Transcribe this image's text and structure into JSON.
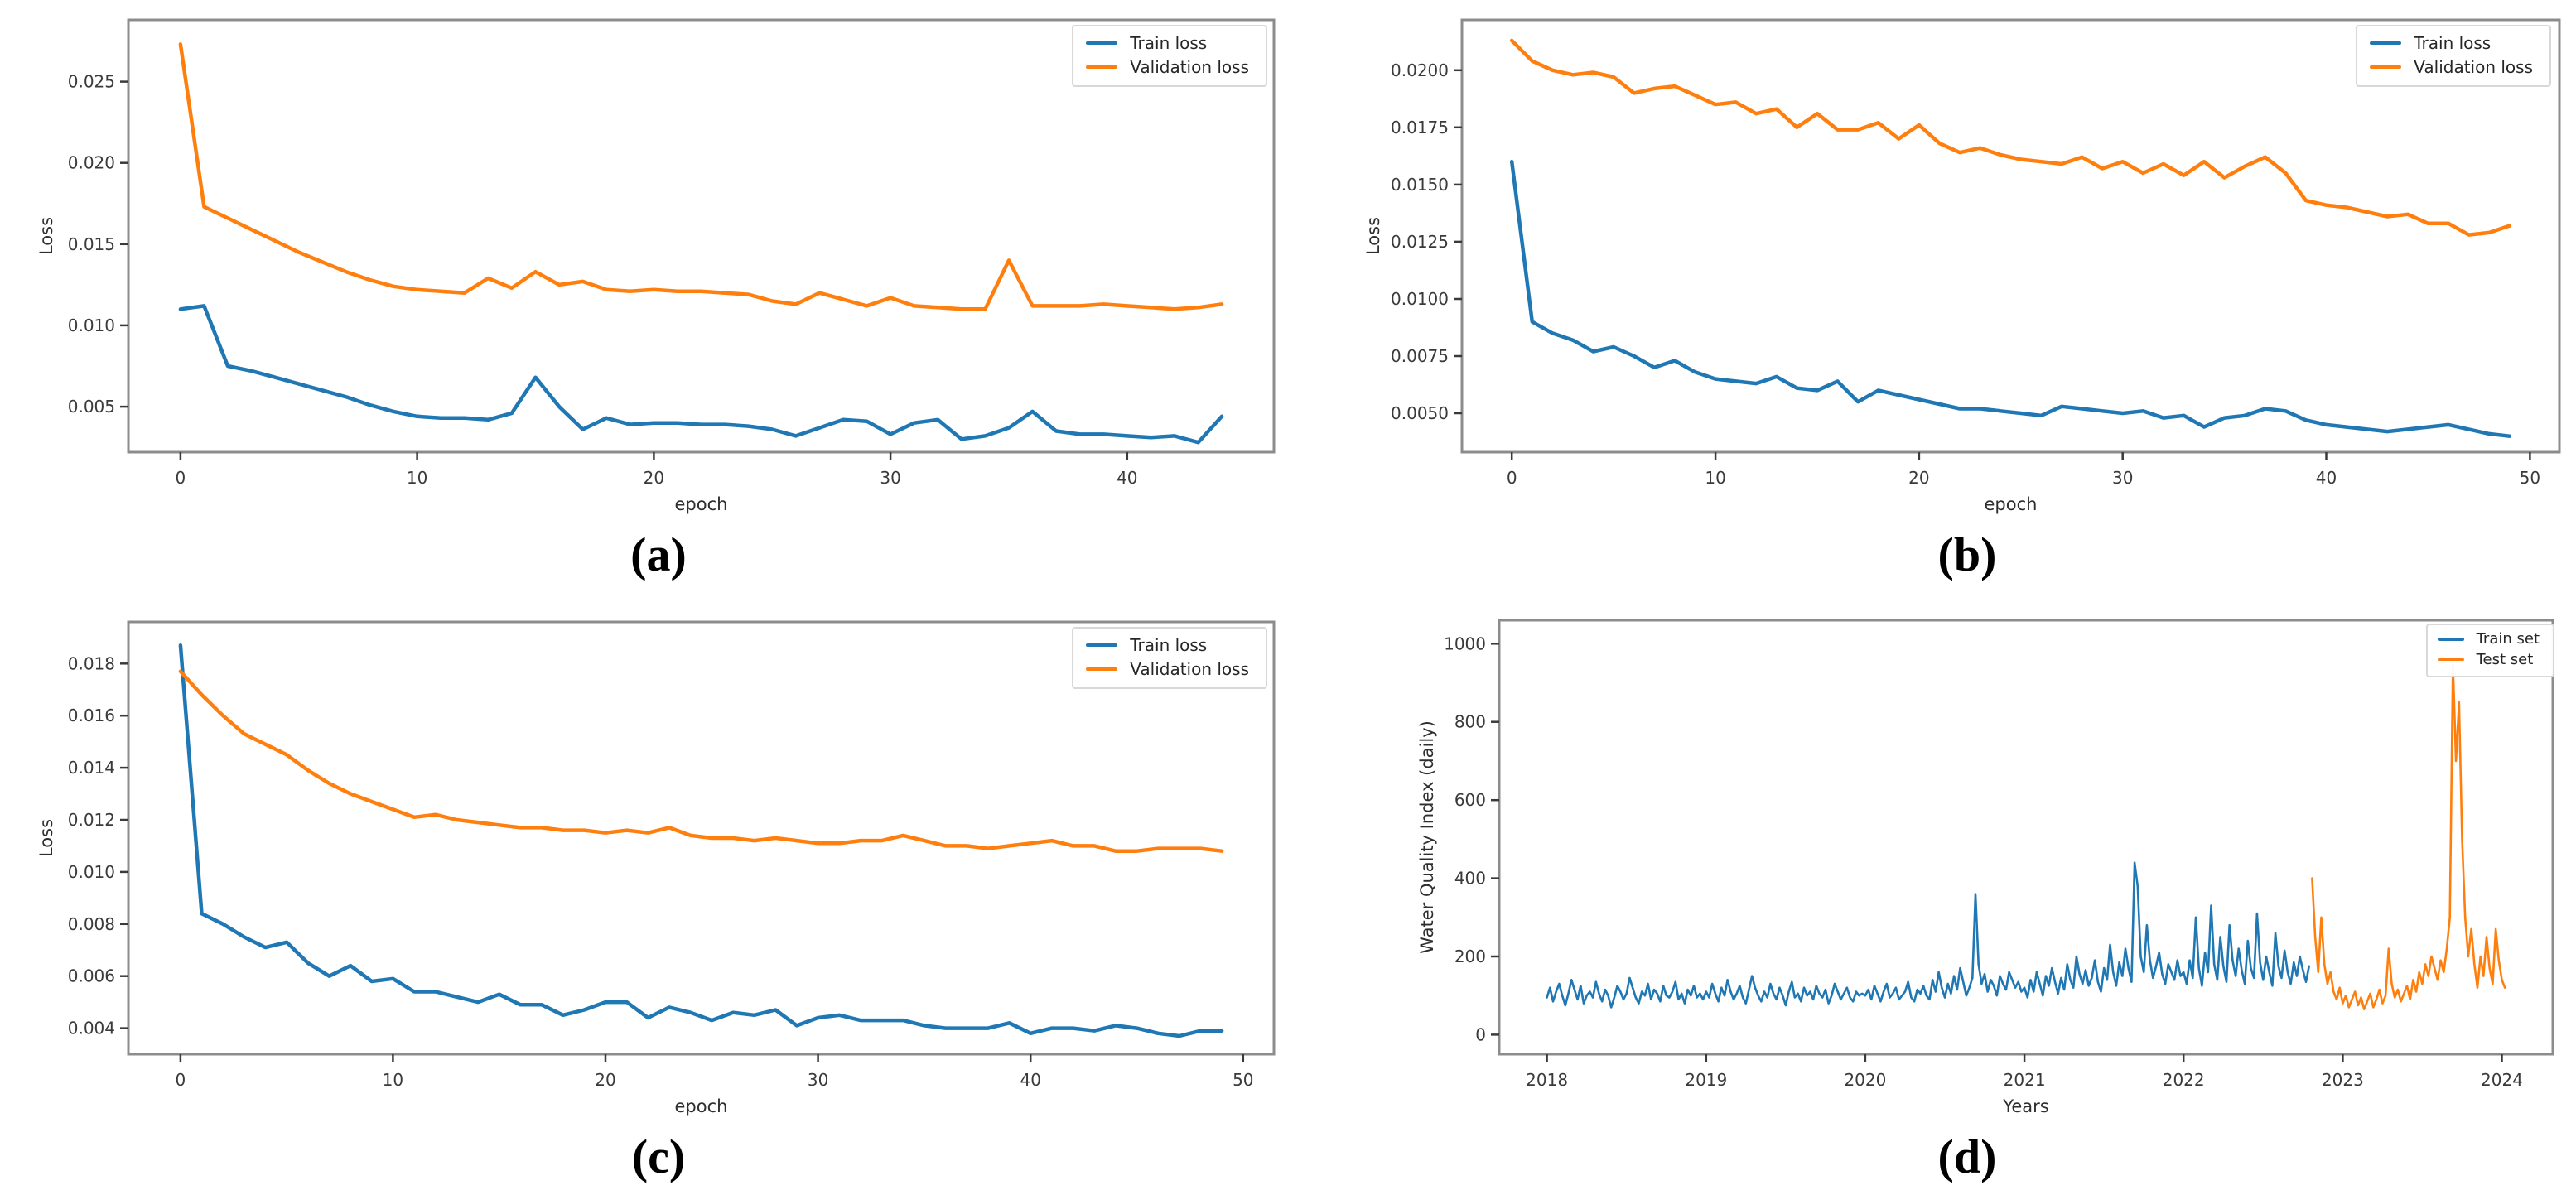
{
  "panel_labels": [
    "(a)",
    "(b)",
    "(c)",
    "(d)"
  ],
  "colors": {
    "train": "#1f77b4",
    "validation": "#ff7f0e",
    "spine": "#8c8c8c",
    "tick": "#3a3a3a",
    "text": "#262626",
    "background": "#ffffff"
  },
  "chart_data": [
    {
      "type": "line",
      "title": "",
      "xlabel": "epoch",
      "ylabel": "Loss",
      "grid": false,
      "legend_position": "upper right",
      "xlim": [
        -2.2,
        46.2
      ],
      "ylim": [
        0.0022,
        0.0288
      ],
      "xticks": {
        "values": [
          0,
          10,
          20,
          30,
          40
        ],
        "labels": [
          "0",
          "10",
          "20",
          "30",
          "40"
        ]
      },
      "yticks": {
        "values": [
          0.005,
          0.01,
          0.015,
          0.02,
          0.025
        ],
        "labels": [
          "0.005",
          "0.010",
          "0.015",
          "0.020",
          "0.025"
        ]
      },
      "legend": [
        {
          "name": "Train loss"
        },
        {
          "name": "Validation loss"
        }
      ],
      "series": [
        {
          "name": "Train loss",
          "color": "#1f77b4",
          "x_start": 0,
          "x_step": 1,
          "values": [
            0.011,
            0.0112,
            0.0075,
            0.0072,
            0.0068,
            0.0064,
            0.006,
            0.0056,
            0.0051,
            0.0047,
            0.0044,
            0.0043,
            0.0043,
            0.0042,
            0.0046,
            0.0068,
            0.005,
            0.0036,
            0.0043,
            0.0039,
            0.004,
            0.004,
            0.0039,
            0.0039,
            0.0038,
            0.0036,
            0.0032,
            0.0037,
            0.0042,
            0.0041,
            0.0033,
            0.004,
            0.0042,
            0.003,
            0.0032,
            0.0037,
            0.0047,
            0.0035,
            0.0033,
            0.0033,
            0.0032,
            0.0031,
            0.0032,
            0.0028,
            0.0044
          ]
        },
        {
          "name": "Validation loss",
          "color": "#ff7f0e",
          "x_start": 0,
          "x_step": 1,
          "values": [
            0.0273,
            0.0173,
            0.0166,
            0.0159,
            0.0152,
            0.0145,
            0.0139,
            0.0133,
            0.0128,
            0.0124,
            0.0122,
            0.0121,
            0.012,
            0.0129,
            0.0123,
            0.0133,
            0.0125,
            0.0127,
            0.0122,
            0.0121,
            0.0122,
            0.0121,
            0.0121,
            0.012,
            0.0119,
            0.0115,
            0.0113,
            0.012,
            0.0116,
            0.0112,
            0.0117,
            0.0112,
            0.0111,
            0.011,
            0.011,
            0.014,
            0.0112,
            0.0112,
            0.0112,
            0.0113,
            0.0112,
            0.0111,
            0.011,
            0.0111,
            0.0113
          ]
        }
      ]
    },
    {
      "type": "line",
      "title": "",
      "xlabel": "epoch",
      "ylabel": "Loss",
      "grid": false,
      "legend_position": "upper right",
      "xlim": [
        -2.45,
        51.45
      ],
      "ylim": [
        0.0033,
        0.0222
      ],
      "xticks": {
        "values": [
          0,
          10,
          20,
          30,
          40,
          50
        ],
        "labels": [
          "0",
          "10",
          "20",
          "30",
          "40",
          "50"
        ]
      },
      "yticks": {
        "values": [
          0.005,
          0.0075,
          0.01,
          0.0125,
          0.015,
          0.0175,
          0.02
        ],
        "labels": [
          "0.0050",
          "0.0075",
          "0.0100",
          "0.0125",
          "0.0150",
          "0.0175",
          "0.0200"
        ]
      },
      "legend": [
        {
          "name": "Train loss"
        },
        {
          "name": "Validation loss"
        }
      ],
      "series": [
        {
          "name": "Train loss",
          "color": "#1f77b4",
          "x_start": 0,
          "x_step": 1,
          "values": [
            0.016,
            0.009,
            0.0085,
            0.0082,
            0.0077,
            0.0079,
            0.0075,
            0.007,
            0.0073,
            0.0068,
            0.0065,
            0.0064,
            0.0063,
            0.0066,
            0.0061,
            0.006,
            0.0064,
            0.0055,
            0.006,
            0.0058,
            0.0056,
            0.0054,
            0.0052,
            0.0052,
            0.0051,
            0.005,
            0.0049,
            0.0053,
            0.0052,
            0.0051,
            0.005,
            0.0051,
            0.0048,
            0.0049,
            0.0044,
            0.0048,
            0.0049,
            0.0052,
            0.0051,
            0.0047,
            0.0045,
            0.0044,
            0.0043,
            0.0042,
            0.0043,
            0.0044,
            0.0045,
            0.0043,
            0.0041,
            0.004
          ]
        },
        {
          "name": "Validation loss",
          "color": "#ff7f0e",
          "x_start": 0,
          "x_step": 1,
          "values": [
            0.0213,
            0.0204,
            0.02,
            0.0198,
            0.0199,
            0.0197,
            0.019,
            0.0192,
            0.0193,
            0.0189,
            0.0185,
            0.0186,
            0.0181,
            0.0183,
            0.0175,
            0.0181,
            0.0174,
            0.0174,
            0.0177,
            0.017,
            0.0176,
            0.0168,
            0.0164,
            0.0166,
            0.0163,
            0.0161,
            0.016,
            0.0159,
            0.0162,
            0.0157,
            0.016,
            0.0155,
            0.0159,
            0.0154,
            0.016,
            0.0153,
            0.0158,
            0.0162,
            0.0155,
            0.0143,
            0.0141,
            0.014,
            0.0138,
            0.0136,
            0.0137,
            0.0133,
            0.0133,
            0.0128,
            0.0129,
            0.0132
          ]
        }
      ]
    },
    {
      "type": "line",
      "title": "",
      "xlabel": "epoch",
      "ylabel": "Loss",
      "grid": false,
      "legend_position": "upper right",
      "xlim": [
        -2.45,
        51.45
      ],
      "ylim": [
        0.003,
        0.0196
      ],
      "xticks": {
        "values": [
          0,
          10,
          20,
          30,
          40,
          50
        ],
        "labels": [
          "0",
          "10",
          "20",
          "30",
          "40",
          "50"
        ]
      },
      "yticks": {
        "values": [
          0.004,
          0.006,
          0.008,
          0.01,
          0.012,
          0.014,
          0.016,
          0.018
        ],
        "labels": [
          "0.004",
          "0.006",
          "0.008",
          "0.010",
          "0.012",
          "0.014",
          "0.016",
          "0.018"
        ]
      },
      "legend": [
        {
          "name": "Train loss"
        },
        {
          "name": "Validation loss"
        }
      ],
      "series": [
        {
          "name": "Train loss",
          "color": "#1f77b4",
          "x_start": 0,
          "x_step": 1,
          "values": [
            0.0187,
            0.0084,
            0.008,
            0.0075,
            0.0071,
            0.0073,
            0.0065,
            0.006,
            0.0064,
            0.0058,
            0.0059,
            0.0054,
            0.0054,
            0.0052,
            0.005,
            0.0053,
            0.0049,
            0.0049,
            0.0045,
            0.0047,
            0.005,
            0.005,
            0.0044,
            0.0048,
            0.0046,
            0.0043,
            0.0046,
            0.0045,
            0.0047,
            0.0041,
            0.0044,
            0.0045,
            0.0043,
            0.0043,
            0.0043,
            0.0041,
            0.004,
            0.004,
            0.004,
            0.0042,
            0.0038,
            0.004,
            0.004,
            0.0039,
            0.0041,
            0.004,
            0.0038,
            0.0037,
            0.0039,
            0.0039
          ]
        },
        {
          "name": "Validation loss",
          "color": "#ff7f0e",
          "x_start": 0,
          "x_step": 1,
          "values": [
            0.0177,
            0.0168,
            0.016,
            0.0153,
            0.0149,
            0.0145,
            0.0139,
            0.0134,
            0.013,
            0.0127,
            0.0124,
            0.0121,
            0.0122,
            0.012,
            0.0119,
            0.0118,
            0.0117,
            0.0117,
            0.0116,
            0.0116,
            0.0115,
            0.0116,
            0.0115,
            0.0117,
            0.0114,
            0.0113,
            0.0113,
            0.0112,
            0.0113,
            0.0112,
            0.0111,
            0.0111,
            0.0112,
            0.0112,
            0.0114,
            0.0112,
            0.011,
            0.011,
            0.0109,
            0.011,
            0.0111,
            0.0112,
            0.011,
            0.011,
            0.0108,
            0.0108,
            0.0109,
            0.0109,
            0.0109,
            0.0108
          ]
        }
      ]
    },
    {
      "type": "line",
      "title": "",
      "xlabel": "Years",
      "ylabel": "Water Quality Index (daily)",
      "grid": false,
      "legend_position": "upper right",
      "xlim": [
        2017.7,
        2024.32
      ],
      "ylim": [
        -50,
        1060
      ],
      "xticks": {
        "values": [
          2018,
          2019,
          2020,
          2021,
          2022,
          2023,
          2024
        ],
        "labels": [
          "2018",
          "2019",
          "2020",
          "2021",
          "2022",
          "2023",
          "2024"
        ]
      },
      "yticks": {
        "values": [
          0,
          200,
          400,
          600,
          800,
          1000
        ],
        "labels": [
          "0",
          "200",
          "400",
          "600",
          "800",
          "1000"
        ]
      },
      "legend": [
        {
          "name": "Train set"
        },
        {
          "name": "Test set"
        }
      ],
      "series": [
        {
          "name": "Train set",
          "color": "#1f77b4",
          "x_start": 2018.0,
          "x_step": 0.019231,
          "values": [
            95,
            120,
            85,
            110,
            130,
            100,
            75,
            105,
            140,
            115,
            90,
            125,
            80,
            100,
            110,
            95,
            135,
            105,
            85,
            115,
            100,
            70,
            95,
            125,
            110,
            90,
            105,
            145,
            120,
            95,
            80,
            110,
            100,
            130,
            90,
            115,
            105,
            85,
            125,
            100,
            95,
            110,
            135,
            90,
            105,
            80,
            115,
            100,
            125,
            95,
            105,
            90,
            110,
            95,
            130,
            105,
            85,
            120,
            100,
            140,
            110,
            90,
            105,
            125,
            95,
            80,
            115,
            150,
            120,
            100,
            85,
            110,
            95,
            130,
            105,
            90,
            120,
            100,
            75,
            110,
            135,
            95,
            105,
            85,
            120,
            100,
            110,
            90,
            125,
            105,
            95,
            115,
            80,
            100,
            130,
            110,
            90,
            105,
            120,
            95,
            85,
            110,
            100,
            105,
            100,
            115,
            90,
            125,
            105,
            85,
            110,
            130,
            95,
            105,
            120,
            90,
            100,
            110,
            135,
            95,
            85,
            115,
            105,
            125,
            100,
            90,
            140,
            110,
            160,
            120,
            95,
            130,
            105,
            150,
            115,
            170,
            135,
            100,
            120,
            145,
            360,
            180,
            130,
            155,
            110,
            140,
            125,
            100,
            150,
            130,
            115,
            160,
            140,
            120,
            135,
            110,
            120,
            95,
            140,
            110,
            160,
            130,
            100,
            150,
            125,
            170,
            135,
            105,
            145,
            115,
            180,
            140,
            120,
            200,
            155,
            130,
            165,
            125,
            145,
            190,
            135,
            110,
            170,
            140,
            230,
            160,
            125,
            185,
            150,
            220,
            170,
            135,
            440,
            380,
            200,
            160,
            280,
            190,
            145,
            175,
            210,
            155,
            130,
            180,
            160,
            140,
            190,
            150,
            160,
            130,
            190,
            145,
            300,
            170,
            125,
            210,
            160,
            330,
            180,
            140,
            250,
            175,
            135,
            280,
            190,
            150,
            220,
            165,
            130,
            240,
            170,
            145,
            310,
            185,
            140,
            200,
            160,
            125,
            260,
            175,
            145,
            215,
            160,
            130,
            185,
            150,
            200,
            165,
            135,
            175
          ]
        },
        {
          "name": "Test set",
          "color": "#ff7f0e",
          "x_start": 2022.8077,
          "x_step": 0.019231,
          "values": [
            400,
            250,
            160,
            300,
            180,
            130,
            160,
            110,
            90,
            120,
            80,
            100,
            70,
            90,
            110,
            75,
            95,
            65,
            85,
            105,
            70,
            90,
            115,
            80,
            100,
            220,
            130,
            95,
            115,
            85,
            105,
            125,
            90,
            140,
            110,
            160,
            130,
            180,
            150,
            200,
            170,
            140,
            190,
            160,
            220,
            300,
            950,
            700,
            850,
            500,
            300,
            200,
            270,
            180,
            120,
            200,
            150,
            250,
            170,
            130,
            270,
            190,
            140,
            120
          ]
        }
      ]
    }
  ]
}
